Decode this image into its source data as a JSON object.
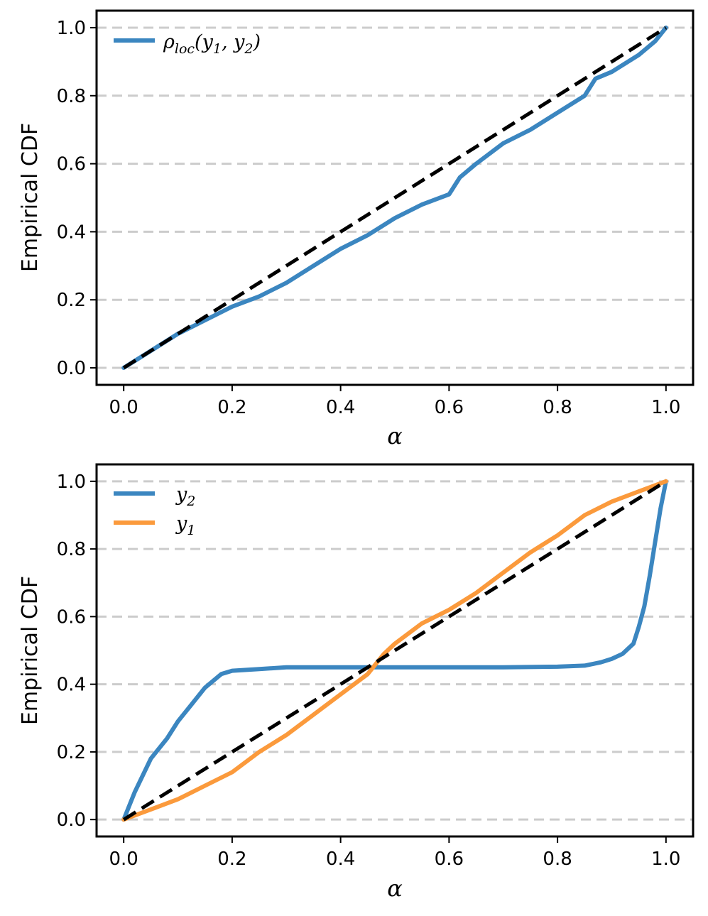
{
  "chart_data": [
    {
      "type": "line",
      "title": "",
      "xlabel": "α",
      "ylabel": "Empirical CDF",
      "xlim": [
        -0.05,
        1.05
      ],
      "ylim": [
        -0.05,
        1.05
      ],
      "xticks": [
        0.0,
        0.2,
        0.4,
        0.6,
        0.8,
        1.0
      ],
      "yticks": [
        0.0,
        0.2,
        0.4,
        0.6,
        0.8,
        1.0
      ],
      "xtick_labels": [
        "0.0",
        "0.2",
        "0.4",
        "0.6",
        "0.8",
        "1.0"
      ],
      "ytick_labels": [
        "0.0",
        "0.2",
        "0.4",
        "0.6",
        "0.8",
        "1.0"
      ],
      "grid": "horizontal dashed",
      "legend_position": "top-left",
      "series": [
        {
          "name": "ρ_loc(y_1, y_2)",
          "legend": {
            "main": "ρ",
            "sub": "loc",
            "args": "(y",
            "a1": "1",
            "comma": ", y",
            "a2": "2",
            "close": ")"
          },
          "color": "#3b86c0",
          "x": [
            0.0,
            0.05,
            0.1,
            0.15,
            0.2,
            0.25,
            0.3,
            0.35,
            0.4,
            0.45,
            0.5,
            0.55,
            0.6,
            0.62,
            0.65,
            0.7,
            0.75,
            0.8,
            0.85,
            0.87,
            0.9,
            0.95,
            0.98,
            1.0
          ],
          "y": [
            0.0,
            0.05,
            0.1,
            0.14,
            0.18,
            0.21,
            0.25,
            0.3,
            0.35,
            0.39,
            0.44,
            0.48,
            0.51,
            0.56,
            0.6,
            0.66,
            0.7,
            0.75,
            0.8,
            0.85,
            0.87,
            0.92,
            0.96,
            1.0
          ]
        },
        {
          "name": "reference",
          "color": "#000000",
          "dashed": true,
          "x": [
            0.0,
            1.0
          ],
          "y": [
            0.0,
            1.0
          ]
        }
      ]
    },
    {
      "type": "line",
      "title": "",
      "xlabel": "α",
      "ylabel": "Empirical CDF",
      "xlim": [
        -0.05,
        1.05
      ],
      "ylim": [
        -0.05,
        1.05
      ],
      "xticks": [
        0.0,
        0.2,
        0.4,
        0.6,
        0.8,
        1.0
      ],
      "yticks": [
        0.0,
        0.2,
        0.4,
        0.6,
        0.8,
        1.0
      ],
      "xtick_labels": [
        "0.0",
        "0.2",
        "0.4",
        "0.6",
        "0.8",
        "1.0"
      ],
      "ytick_labels": [
        "0.0",
        "0.2",
        "0.4",
        "0.6",
        "0.8",
        "1.0"
      ],
      "grid": "horizontal dashed",
      "legend_position": "top-left",
      "series": [
        {
          "name": "y_2",
          "legend": {
            "main": "y",
            "sub": "2"
          },
          "color": "#3b86c0",
          "x": [
            0.0,
            0.02,
            0.05,
            0.08,
            0.1,
            0.12,
            0.15,
            0.18,
            0.2,
            0.25,
            0.3,
            0.4,
            0.5,
            0.6,
            0.7,
            0.8,
            0.85,
            0.88,
            0.9,
            0.92,
            0.94,
            0.95,
            0.96,
            0.97,
            0.98,
            0.99,
            1.0
          ],
          "y": [
            0.0,
            0.08,
            0.18,
            0.24,
            0.29,
            0.33,
            0.39,
            0.43,
            0.44,
            0.445,
            0.45,
            0.45,
            0.45,
            0.45,
            0.45,
            0.452,
            0.455,
            0.465,
            0.475,
            0.49,
            0.52,
            0.57,
            0.63,
            0.72,
            0.82,
            0.92,
            1.0
          ]
        },
        {
          "name": "y_1",
          "legend": {
            "main": "y",
            "sub": "1"
          },
          "color": "#fb9a3c",
          "x": [
            0.0,
            0.05,
            0.1,
            0.15,
            0.2,
            0.25,
            0.3,
            0.35,
            0.4,
            0.45,
            0.48,
            0.5,
            0.55,
            0.6,
            0.65,
            0.7,
            0.75,
            0.8,
            0.85,
            0.9,
            0.95,
            1.0
          ],
          "y": [
            0.0,
            0.03,
            0.06,
            0.1,
            0.14,
            0.2,
            0.25,
            0.31,
            0.37,
            0.43,
            0.49,
            0.52,
            0.58,
            0.62,
            0.67,
            0.73,
            0.79,
            0.84,
            0.9,
            0.94,
            0.97,
            1.0
          ]
        },
        {
          "name": "reference",
          "color": "#000000",
          "dashed": true,
          "x": [
            0.0,
            1.0
          ],
          "y": [
            0.0,
            1.0
          ]
        }
      ]
    }
  ]
}
